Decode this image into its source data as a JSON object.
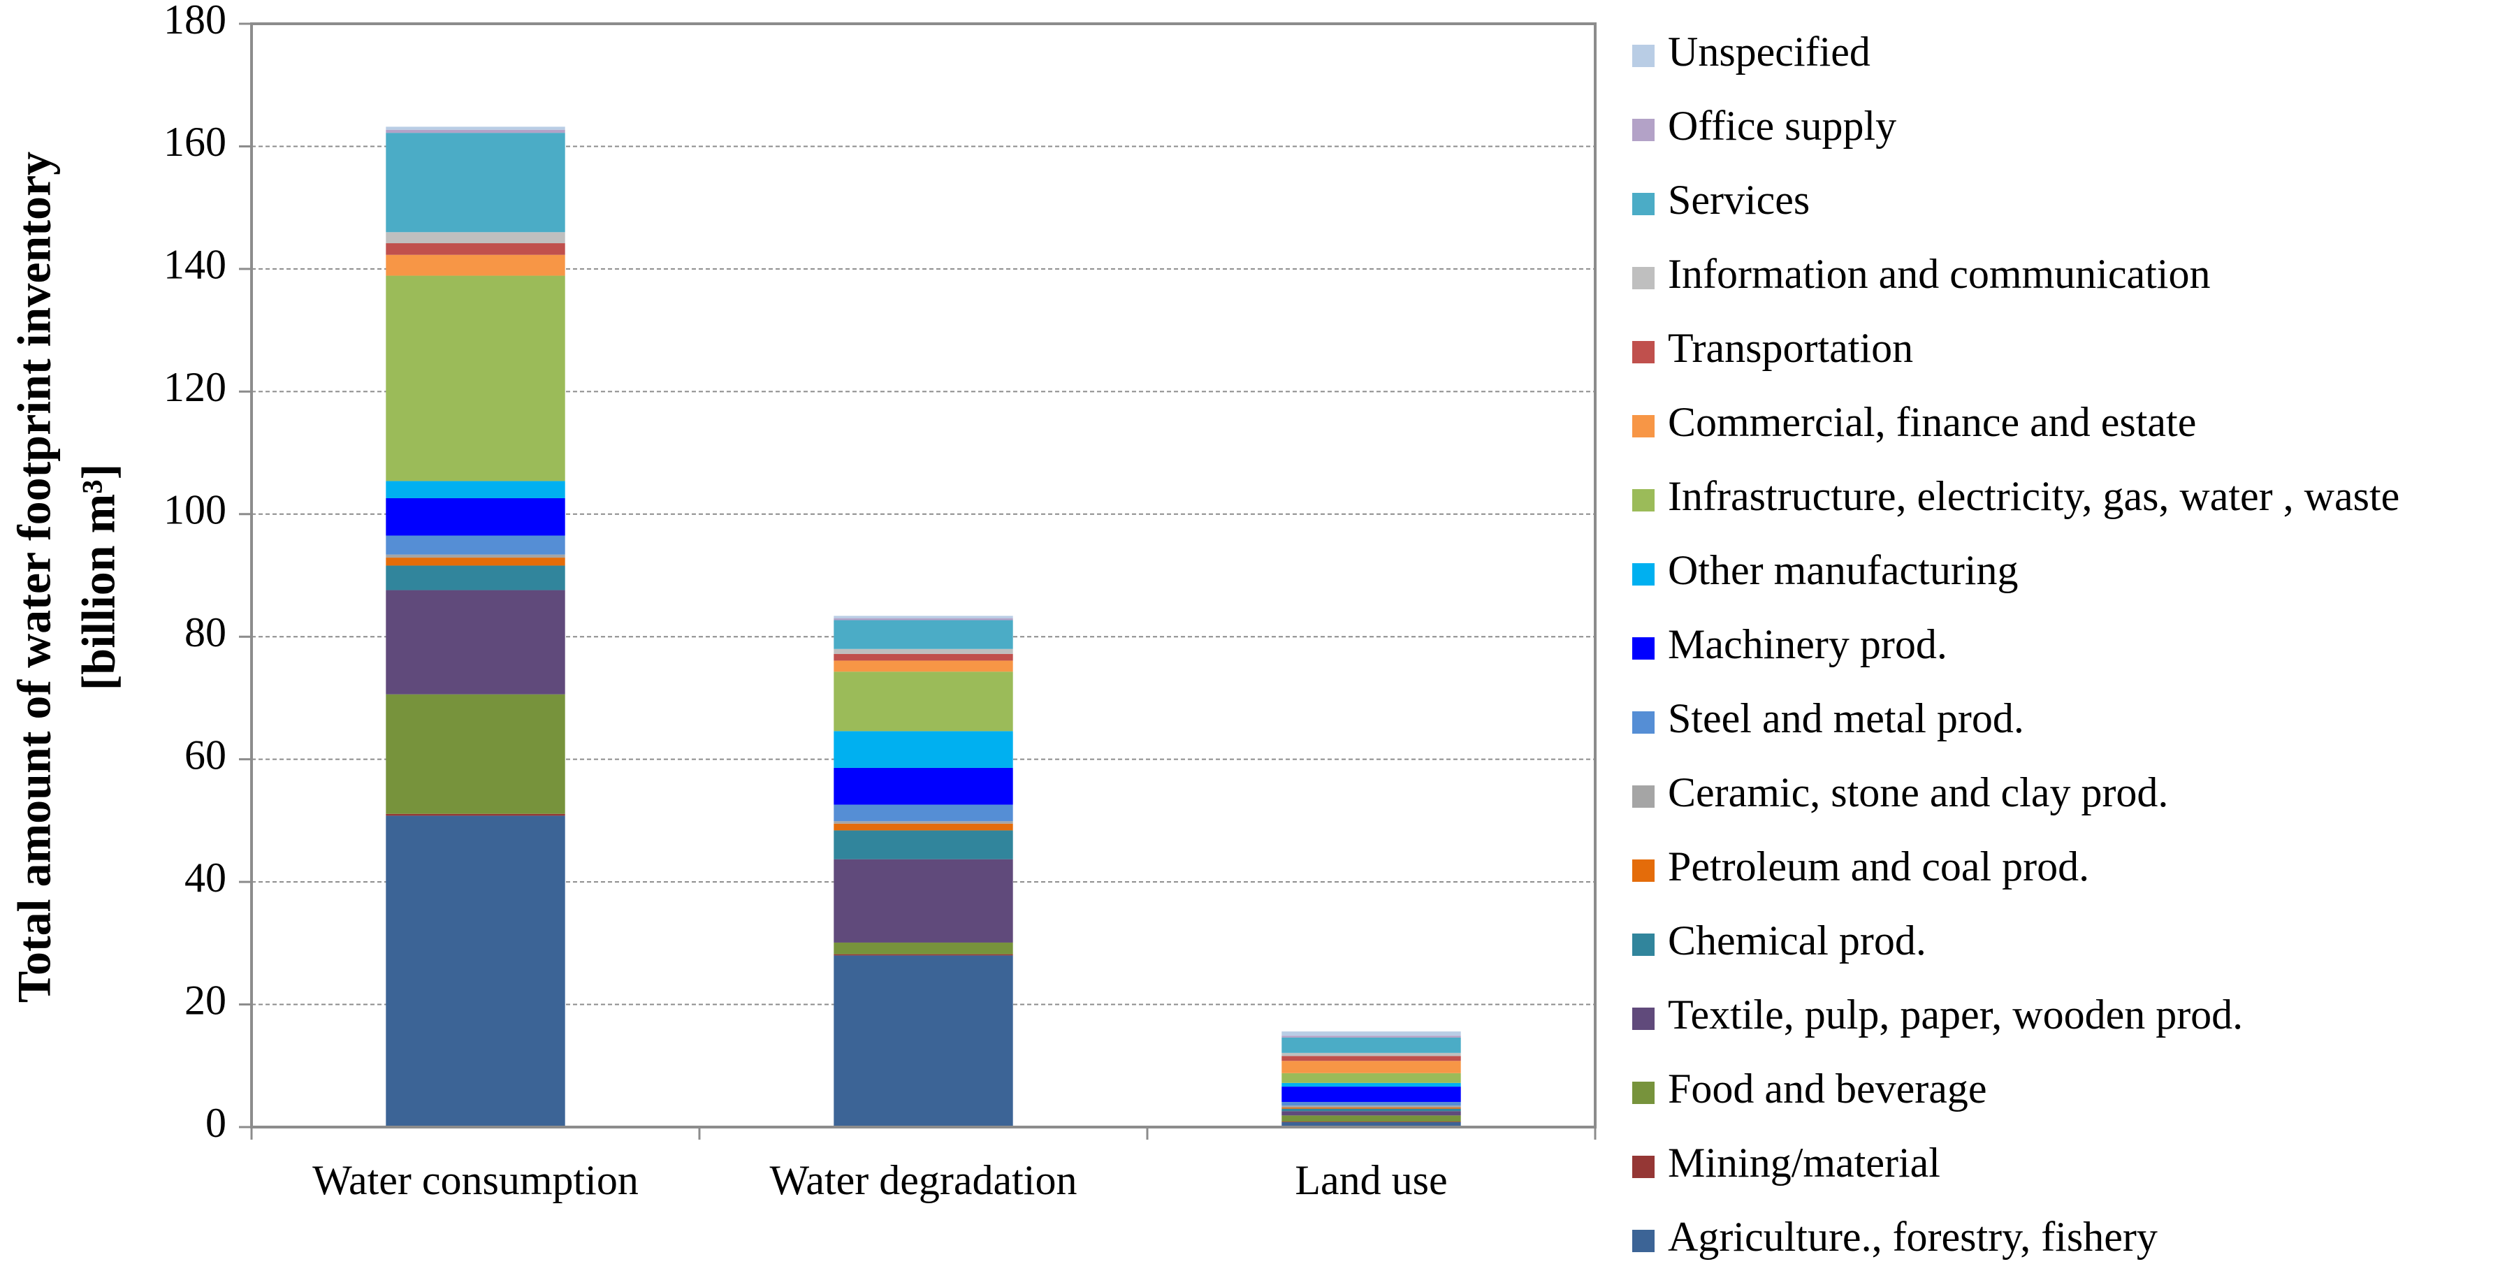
{
  "chart_data": {
    "type": "stacked_bar",
    "y_label": [
      "Total amount of water footprint inventory",
      "[billion m³]"
    ],
    "categories": [
      "Water consumption",
      "Water degradation",
      "Land use"
    ],
    "ylim": [
      0,
      180
    ],
    "yticks": [
      0,
      20,
      40,
      60,
      80,
      100,
      120,
      140,
      160,
      180
    ],
    "grid": true,
    "legend": "right",
    "series": [
      {
        "name": "Agriculture., forestry, fishery",
        "color": "#3c6496",
        "values": [
          50.8,
          28,
          0.8
        ]
      },
      {
        "name": "Mining/material",
        "color": "#953735",
        "values": [
          0.3,
          0.2,
          0.1
        ]
      },
      {
        "name": "Food and beverage",
        "color": "#77933c",
        "values": [
          19.5,
          1.9,
          1.0
        ]
      },
      {
        "name": "Textile, pulp, paper, wooden prod.",
        "color": "#604a7b",
        "values": [
          17,
          13.6,
          0.7
        ]
      },
      {
        "name": "Chemical prod.",
        "color": "#31859c",
        "values": [
          4,
          4.7,
          0.4
        ]
      },
      {
        "name": "Petroleum and coal prod.",
        "color": "#e46c0a",
        "values": [
          1.3,
          1.1,
          0.2
        ]
      },
      {
        "name": "Ceramic, stone and clay prod.",
        "color": "#a5a5a5",
        "values": [
          0.5,
          0.4,
          0.3
        ]
      },
      {
        "name": "Steel and metal prod.",
        "color": "#558ed5",
        "values": [
          3.1,
          2.7,
          0.6
        ]
      },
      {
        "name": "Machinery prod.",
        "color": "#0000ff",
        "values": [
          6.1,
          6,
          2.5
        ]
      },
      {
        "name": "Other manufacturing",
        "color": "#00b0f0",
        "values": [
          2.8,
          6,
          0.6
        ]
      },
      {
        "name": "Infrastructure, electricity, gas, water , waste",
        "color": "#9bbb59",
        "values": [
          33.5,
          9.7,
          1.6
        ]
      },
      {
        "name": "Commercial, finance and estate",
        "color": "#f79646",
        "values": [
          3.4,
          1.8,
          2.0
        ]
      },
      {
        "name": "Transportation",
        "color": "#c0504d",
        "values": [
          1.9,
          1.1,
          0.8
        ]
      },
      {
        "name": "Information and communication",
        "color": "#bfbfbf",
        "values": [
          1.8,
          0.8,
          0.5
        ]
      },
      {
        "name": "Services",
        "color": "#4bacc6",
        "values": [
          16.2,
          4.7,
          2.5
        ]
      },
      {
        "name": "Office supply",
        "color": "#b3a2c7",
        "values": [
          0.5,
          0.3,
          0.3
        ]
      },
      {
        "name": "Unspecified",
        "color": "#b9cde5",
        "values": [
          0.5,
          0.4,
          0.7
        ]
      }
    ]
  }
}
